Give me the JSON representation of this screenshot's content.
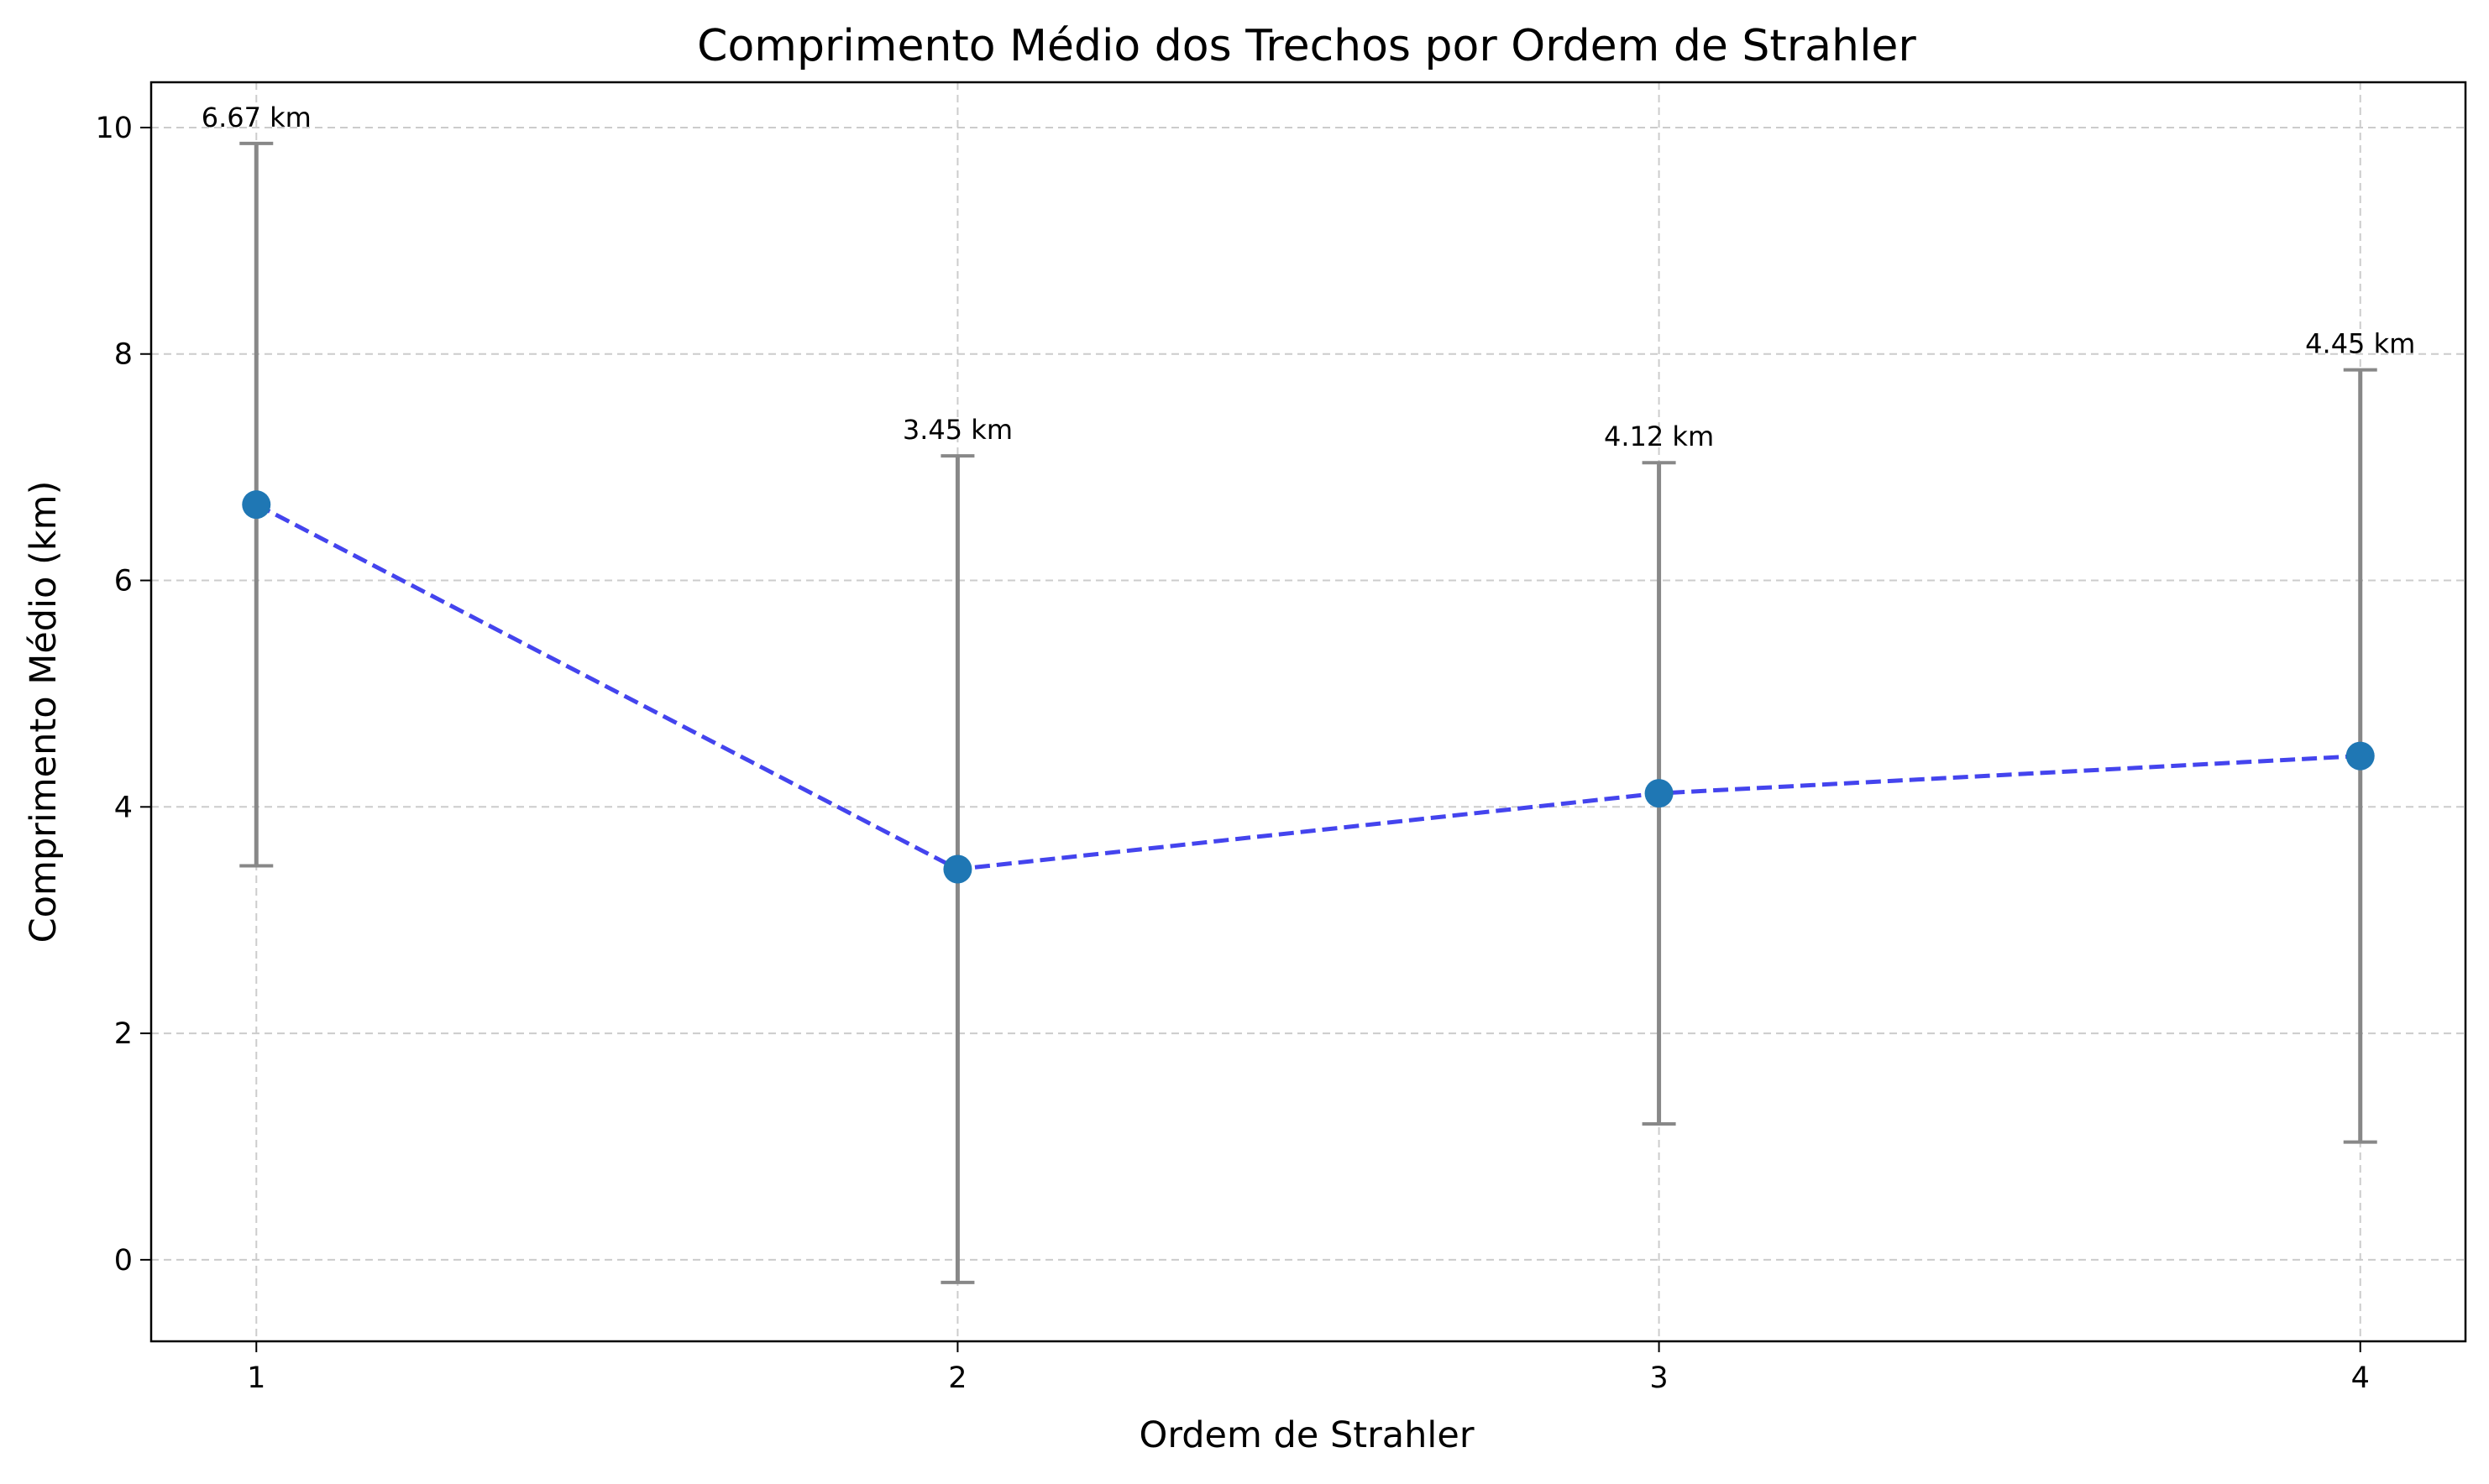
{
  "chart_data": {
    "type": "line",
    "title": "Comprimento Médio dos Trechos por Ordem de Strahler",
    "xlabel": "Ordem de Strahler",
    "ylabel": "Comprimento Médio (km)",
    "x": [
      1,
      2,
      3,
      4
    ],
    "xticks": [
      "1",
      "2",
      "3",
      "4"
    ],
    "yticks": [
      "0",
      "2",
      "4",
      "6",
      "8",
      "10"
    ],
    "xlim": [
      0.85,
      4.15
    ],
    "ylim": [
      -0.72,
      10.4
    ],
    "grid": true,
    "series": [
      {
        "values": [
          6.67,
          3.45,
          4.12,
          4.45
        ],
        "error_lower": [
          3.48,
          -0.2,
          1.2,
          1.04
        ],
        "error_upper": [
          9.86,
          7.1,
          7.04,
          7.86
        ],
        "data_labels": [
          "6.67 km",
          "3.45 km",
          "4.12 km",
          "4.45 km"
        ],
        "line_color": "#4444ee",
        "marker_color": "#1f77b4",
        "errorbar_color": "#888888",
        "line_style": "dashed"
      }
    ],
    "grid_color": "#cccccc"
  }
}
